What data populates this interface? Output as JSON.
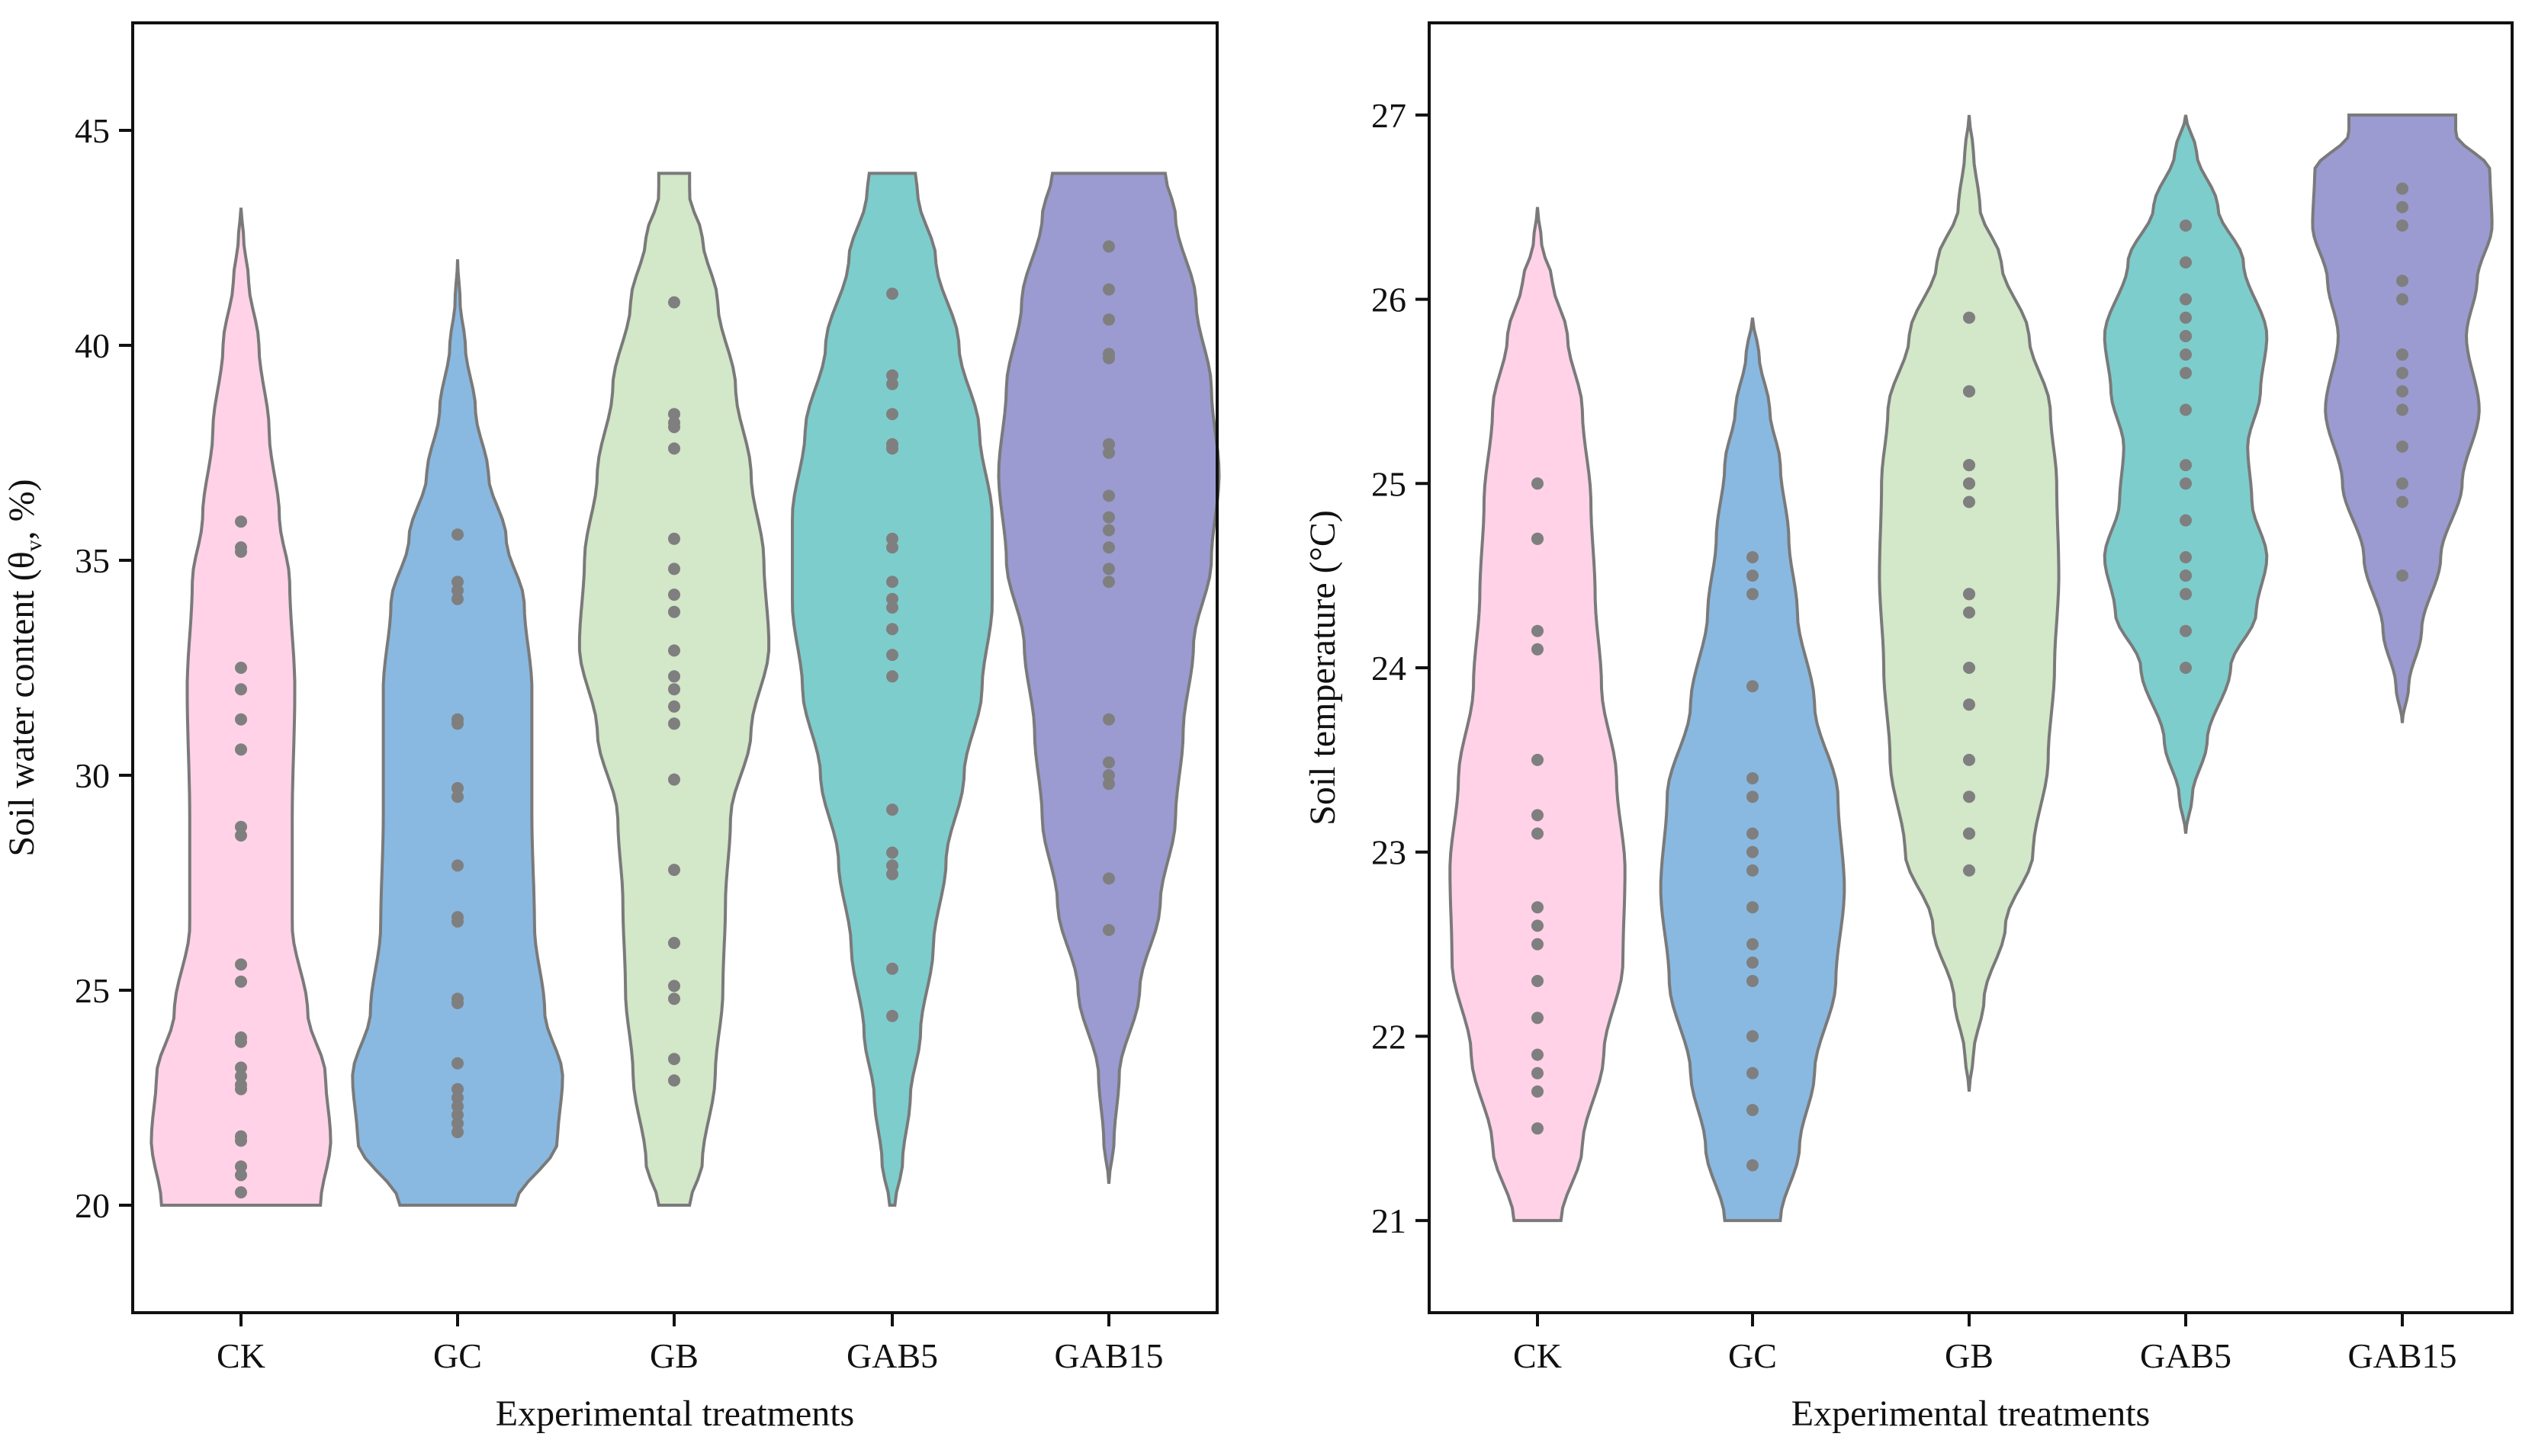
{
  "chart_data": [
    {
      "type": "violin",
      "xlabel": "Experimental treatments",
      "ylabel_main": "Soil water content (θ",
      "ylabel_sub": "v",
      "ylabel_tail": ", %)",
      "ylim": [
        17.5,
        47.5
      ],
      "yticks": [
        "20",
        "25",
        "30",
        "35",
        "40",
        "45"
      ],
      "categories": [
        "CK",
        "GC",
        "GB",
        "GAB5",
        "GAB15"
      ],
      "series": [
        {
          "name": "CK",
          "color": "#ffd2e8",
          "range": [
            20.0,
            43.2
          ],
          "profile": [
            [
              20.0,
              0.62
            ],
            [
              21.5,
              0.7
            ],
            [
              23.0,
              0.66
            ],
            [
              24.5,
              0.52
            ],
            [
              26.5,
              0.4
            ],
            [
              29.0,
              0.4
            ],
            [
              32.0,
              0.42
            ],
            [
              34.5,
              0.38
            ],
            [
              36.0,
              0.3
            ],
            [
              38.0,
              0.22
            ],
            [
              40.0,
              0.14
            ],
            [
              41.5,
              0.06
            ],
            [
              42.5,
              0.02
            ],
            [
              43.2,
              0.0
            ]
          ],
          "points": [
            20.3,
            20.7,
            20.9,
            21.5,
            21.6,
            22.7,
            22.8,
            23.0,
            23.2,
            23.8,
            23.9,
            25.2,
            25.6,
            28.6,
            28.8,
            30.6,
            31.3,
            32.0,
            32.5,
            35.2,
            35.3,
            35.9
          ]
        },
        {
          "name": "GC",
          "color": "#89b9e1",
          "range": [
            20.0,
            42.0
          ],
          "profile": [
            [
              20.0,
              0.45
            ],
            [
              21.5,
              0.78
            ],
            [
              23.0,
              0.82
            ],
            [
              24.5,
              0.68
            ],
            [
              26.5,
              0.6
            ],
            [
              29.0,
              0.58
            ],
            [
              32.0,
              0.58
            ],
            [
              34.0,
              0.52
            ],
            [
              35.5,
              0.38
            ],
            [
              37.0,
              0.24
            ],
            [
              38.5,
              0.14
            ],
            [
              40.0,
              0.06
            ],
            [
              41.0,
              0.02
            ],
            [
              42.0,
              0.0
            ]
          ],
          "points": [
            21.7,
            21.9,
            22.1,
            22.3,
            22.5,
            22.7,
            23.3,
            24.7,
            24.8,
            26.6,
            26.7,
            27.9,
            29.5,
            29.7,
            31.2,
            31.3,
            34.1,
            34.3,
            34.5,
            35.6
          ]
        },
        {
          "name": "GB",
          "color": "#d3e7c9",
          "range": [
            20.0,
            44.0
          ],
          "profile": [
            [
              20.0,
              0.12
            ],
            [
              21.0,
              0.22
            ],
            [
              23.0,
              0.32
            ],
            [
              25.0,
              0.38
            ],
            [
              27.0,
              0.4
            ],
            [
              29.0,
              0.44
            ],
            [
              31.0,
              0.6
            ],
            [
              33.0,
              0.74
            ],
            [
              35.0,
              0.7
            ],
            [
              37.0,
              0.6
            ],
            [
              39.0,
              0.48
            ],
            [
              41.0,
              0.34
            ],
            [
              42.5,
              0.22
            ],
            [
              43.5,
              0.12
            ],
            [
              44.0,
              0.12
            ]
          ],
          "points": [
            22.9,
            23.4,
            24.8,
            25.1,
            26.1,
            27.8,
            29.9,
            31.2,
            31.6,
            32.0,
            32.3,
            32.9,
            33.8,
            34.2,
            34.8,
            35.5,
            37.6,
            38.1,
            38.2,
            38.4,
            41.0
          ]
        },
        {
          "name": "GAB5",
          "color": "#7ecdcd",
          "range": [
            20.0,
            44.0
          ],
          "profile": [
            [
              20.0,
              0.02
            ],
            [
              21.0,
              0.08
            ],
            [
              22.5,
              0.14
            ],
            [
              24.0,
              0.22
            ],
            [
              26.0,
              0.32
            ],
            [
              28.0,
              0.42
            ],
            [
              30.0,
              0.56
            ],
            [
              32.0,
              0.7
            ],
            [
              34.0,
              0.78
            ],
            [
              36.0,
              0.78
            ],
            [
              38.0,
              0.68
            ],
            [
              40.0,
              0.52
            ],
            [
              42.0,
              0.34
            ],
            [
              43.5,
              0.2
            ],
            [
              44.0,
              0.18
            ]
          ],
          "points": [
            24.4,
            25.5,
            27.7,
            27.9,
            28.2,
            29.2,
            32.3,
            32.8,
            33.4,
            33.9,
            34.1,
            34.5,
            35.3,
            35.5,
            37.6,
            37.7,
            38.4,
            39.1,
            39.3,
            41.2
          ]
        },
        {
          "name": "GAB15",
          "color": "#9b9bd2",
          "range": [
            20.5,
            44.0
          ],
          "profile": [
            [
              20.5,
              0.0
            ],
            [
              21.5,
              0.04
            ],
            [
              23.0,
              0.08
            ],
            [
              25.0,
              0.24
            ],
            [
              27.0,
              0.4
            ],
            [
              29.0,
              0.52
            ],
            [
              31.0,
              0.58
            ],
            [
              33.0,
              0.66
            ],
            [
              35.0,
              0.8
            ],
            [
              37.0,
              0.86
            ],
            [
              39.0,
              0.8
            ],
            [
              41.0,
              0.68
            ],
            [
              43.0,
              0.52
            ],
            [
              44.0,
              0.44
            ]
          ],
          "points": [
            26.4,
            27.6,
            29.8,
            30.0,
            30.3,
            31.3,
            34.5,
            34.8,
            35.3,
            35.7,
            36.0,
            36.5,
            37.5,
            37.7,
            39.7,
            39.8,
            40.6,
            41.3,
            42.3
          ]
        }
      ]
    },
    {
      "type": "violin",
      "xlabel": "Experimental treatments",
      "ylabel_main": "Soil temperature (°C)",
      "ylim": [
        20.5,
        27.5
      ],
      "yticks": [
        "21",
        "22",
        "23",
        "24",
        "25",
        "26",
        "27"
      ],
      "categories": [
        "CK",
        "GC",
        "GB",
        "GAB5",
        "GAB15"
      ],
      "series": [
        {
          "name": "CK",
          "color": "#ffd2e8",
          "range": [
            21.0,
            26.5
          ],
          "profile": [
            [
              21.0,
              0.22
            ],
            [
              21.4,
              0.42
            ],
            [
              21.9,
              0.62
            ],
            [
              22.4,
              0.8
            ],
            [
              22.9,
              0.82
            ],
            [
              23.4,
              0.74
            ],
            [
              23.9,
              0.6
            ],
            [
              24.4,
              0.54
            ],
            [
              24.9,
              0.5
            ],
            [
              25.4,
              0.42
            ],
            [
              25.8,
              0.28
            ],
            [
              26.1,
              0.14
            ],
            [
              26.3,
              0.04
            ],
            [
              26.5,
              0.0
            ]
          ],
          "points": [
            21.5,
            21.7,
            21.8,
            21.9,
            22.1,
            22.3,
            22.5,
            22.6,
            22.7,
            23.1,
            23.2,
            23.5,
            24.1,
            24.2,
            24.7,
            24.7,
            25.0
          ]
        },
        {
          "name": "GC",
          "color": "#89b9e1",
          "range": [
            21.0,
            25.9
          ],
          "profile": [
            [
              21.0,
              0.26
            ],
            [
              21.4,
              0.44
            ],
            [
              21.8,
              0.58
            ],
            [
              22.3,
              0.78
            ],
            [
              22.8,
              0.86
            ],
            [
              23.3,
              0.8
            ],
            [
              23.8,
              0.58
            ],
            [
              24.3,
              0.42
            ],
            [
              24.7,
              0.34
            ],
            [
              25.1,
              0.26
            ],
            [
              25.4,
              0.16
            ],
            [
              25.7,
              0.06
            ],
            [
              25.9,
              0.0
            ]
          ],
          "points": [
            21.3,
            21.6,
            21.8,
            22.0,
            22.3,
            22.4,
            22.5,
            22.7,
            22.9,
            23.0,
            23.1,
            23.3,
            23.4,
            23.9,
            24.4,
            24.5,
            24.6
          ]
        },
        {
          "name": "GB",
          "color": "#d3e7c9",
          "range": [
            21.7,
            27.0
          ],
          "profile": [
            [
              21.7,
              0.0
            ],
            [
              21.9,
              0.04
            ],
            [
              22.2,
              0.14
            ],
            [
              22.6,
              0.34
            ],
            [
              23.0,
              0.6
            ],
            [
              23.5,
              0.74
            ],
            [
              24.0,
              0.8
            ],
            [
              24.5,
              0.84
            ],
            [
              25.0,
              0.82
            ],
            [
              25.4,
              0.76
            ],
            [
              25.8,
              0.56
            ],
            [
              26.2,
              0.3
            ],
            [
              26.5,
              0.1
            ],
            [
              26.8,
              0.04
            ],
            [
              27.0,
              0.0
            ]
          ],
          "points": [
            22.9,
            23.1,
            23.1,
            23.3,
            23.5,
            23.8,
            24.0,
            24.3,
            24.4,
            24.4,
            24.9,
            25.0,
            25.0,
            25.1,
            25.1,
            25.5,
            25.5,
            25.9
          ]
        },
        {
          "name": "GAB5",
          "color": "#7ecdcd",
          "range": [
            23.1,
            27.0
          ],
          "profile": [
            [
              23.1,
              0.0
            ],
            [
              23.3,
              0.06
            ],
            [
              23.6,
              0.2
            ],
            [
              24.0,
              0.42
            ],
            [
              24.3,
              0.66
            ],
            [
              24.6,
              0.76
            ],
            [
              24.9,
              0.62
            ],
            [
              25.2,
              0.58
            ],
            [
              25.5,
              0.7
            ],
            [
              25.8,
              0.76
            ],
            [
              26.2,
              0.54
            ],
            [
              26.5,
              0.3
            ],
            [
              26.8,
              0.1
            ],
            [
              27.0,
              0.0
            ]
          ],
          "points": [
            24.0,
            24.2,
            24.4,
            24.5,
            24.5,
            24.6,
            24.8,
            25.0,
            25.1,
            25.4,
            25.6,
            25.7,
            25.8,
            25.8,
            25.9,
            26.0,
            26.2,
            26.4
          ]
        },
        {
          "name": "GAB15",
          "color": "#9b9bd2",
          "range": [
            23.7,
            27.0
          ],
          "profile": [
            [
              23.7,
              0.0
            ],
            [
              23.9,
              0.06
            ],
            [
              24.2,
              0.18
            ],
            [
              24.6,
              0.36
            ],
            [
              25.0,
              0.56
            ],
            [
              25.4,
              0.72
            ],
            [
              25.8,
              0.6
            ],
            [
              26.1,
              0.7
            ],
            [
              26.4,
              0.84
            ],
            [
              26.7,
              0.82
            ],
            [
              26.9,
              0.5
            ],
            [
              27.0,
              0.5
            ]
          ],
          "points": [
            24.5,
            24.9,
            25.0,
            25.2,
            25.4,
            25.5,
            25.6,
            25.7,
            25.7,
            26.0,
            26.1,
            26.4,
            26.5,
            26.6,
            26.6
          ]
        }
      ]
    }
  ]
}
